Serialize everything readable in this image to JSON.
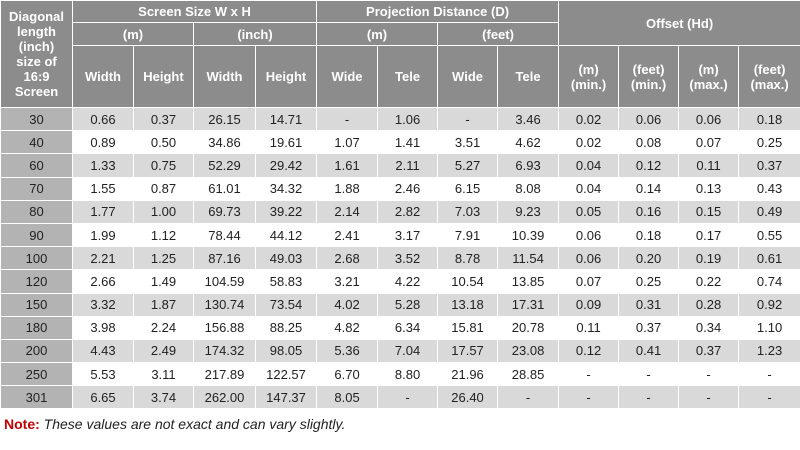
{
  "header": {
    "first": [
      "Diagonal",
      "length",
      "(inch)",
      "size of",
      "16:9",
      "Screen"
    ],
    "groups": [
      "Screen Size W x H",
      "Projection Distance (D)",
      "Offset (Hd)"
    ],
    "subgroups": [
      "(m)",
      "(inch)",
      "(m)",
      "(feet)"
    ],
    "columns": [
      [
        "Width"
      ],
      [
        "Height"
      ],
      [
        "Width"
      ],
      [
        "Height"
      ],
      [
        "Wide"
      ],
      [
        "Tele"
      ],
      [
        "Wide"
      ],
      [
        "Tele"
      ],
      [
        "(m)",
        "(min.)"
      ],
      [
        "(feet)",
        "(min.)"
      ],
      [
        "(m)",
        "(max.)"
      ],
      [
        "(feet)",
        "(max.)"
      ]
    ]
  },
  "rows": [
    [
      "30",
      "0.66",
      "0.37",
      "26.15",
      "14.71",
      "-",
      "1.06",
      "-",
      "3.46",
      "0.02",
      "0.06",
      "0.06",
      "0.18"
    ],
    [
      "40",
      "0.89",
      "0.50",
      "34.86",
      "19.61",
      "1.07",
      "1.41",
      "3.51",
      "4.62",
      "0.02",
      "0.08",
      "0.07",
      "0.25"
    ],
    [
      "60",
      "1.33",
      "0.75",
      "52.29",
      "29.42",
      "1.61",
      "2.11",
      "5.27",
      "6.93",
      "0.04",
      "0.12",
      "0.11",
      "0.37"
    ],
    [
      "70",
      "1.55",
      "0.87",
      "61.01",
      "34.32",
      "1.88",
      "2.46",
      "6.15",
      "8.08",
      "0.04",
      "0.14",
      "0.13",
      "0.43"
    ],
    [
      "80",
      "1.77",
      "1.00",
      "69.73",
      "39.22",
      "2.14",
      "2.82",
      "7.03",
      "9.23",
      "0.05",
      "0.16",
      "0.15",
      "0.49"
    ],
    [
      "90",
      "1.99",
      "1.12",
      "78.44",
      "44.12",
      "2.41",
      "3.17",
      "7.91",
      "10.39",
      "0.06",
      "0.18",
      "0.17",
      "0.55"
    ],
    [
      "100",
      "2.21",
      "1.25",
      "87.16",
      "49.03",
      "2.68",
      "3.52",
      "8.78",
      "11.54",
      "0.06",
      "0.20",
      "0.19",
      "0.61"
    ],
    [
      "120",
      "2.66",
      "1.49",
      "104.59",
      "58.83",
      "3.21",
      "4.22",
      "10.54",
      "13.85",
      "0.07",
      "0.25",
      "0.22",
      "0.74"
    ],
    [
      "150",
      "3.32",
      "1.87",
      "130.74",
      "73.54",
      "4.02",
      "5.28",
      "13.18",
      "17.31",
      "0.09",
      "0.31",
      "0.28",
      "0.92"
    ],
    [
      "180",
      "3.98",
      "2.24",
      "156.88",
      "88.25",
      "4.82",
      "6.34",
      "15.81",
      "20.78",
      "0.11",
      "0.37",
      "0.34",
      "1.10"
    ],
    [
      "200",
      "4.43",
      "2.49",
      "174.32",
      "98.05",
      "5.36",
      "7.04",
      "17.57",
      "23.08",
      "0.12",
      "0.41",
      "0.37",
      "1.23"
    ],
    [
      "250",
      "5.53",
      "3.11",
      "217.89",
      "122.57",
      "6.70",
      "8.80",
      "21.96",
      "28.85",
      "-",
      "-",
      "-",
      "-"
    ],
    [
      "301",
      "6.65",
      "3.74",
      "262.00",
      "147.37",
      "8.05",
      "-",
      "26.40",
      "-",
      "-",
      "-",
      "-",
      "-"
    ]
  ],
  "note": {
    "label": "Note:",
    "text": "These values are not exact and can vary slightly."
  }
}
